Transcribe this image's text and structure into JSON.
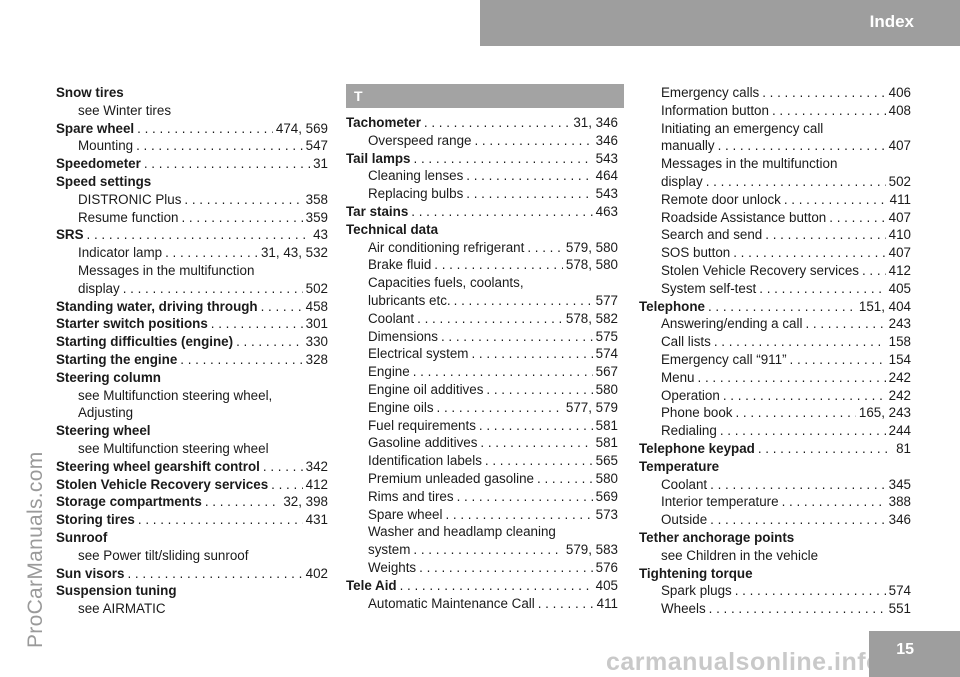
{
  "header": {
    "title": "Index"
  },
  "watermark": "ProCarManuals.com",
  "footer_watermark": "carmanualsonline.info",
  "page_number": "15",
  "col2_letter": "T",
  "columns": [
    [
      {
        "label": "Snow tires",
        "bold": true,
        "sub": false,
        "page": ""
      },
      {
        "label": "see Winter tires",
        "bold": false,
        "sub": true,
        "page": ""
      },
      {
        "label": "Spare wheel",
        "bold": true,
        "sub": false,
        "page": "474, 569"
      },
      {
        "label": "Mounting",
        "bold": false,
        "sub": true,
        "page": "547"
      },
      {
        "label": "Speedometer",
        "bold": true,
        "sub": false,
        "page": "31"
      },
      {
        "label": "Speed settings",
        "bold": true,
        "sub": false,
        "page": ""
      },
      {
        "label": "DISTRONIC Plus",
        "bold": false,
        "sub": true,
        "page": "358"
      },
      {
        "label": "Resume function",
        "bold": false,
        "sub": true,
        "page": "359"
      },
      {
        "label": "SRS",
        "bold": true,
        "sub": false,
        "page": "43"
      },
      {
        "label": "Indicator lamp",
        "bold": false,
        "sub": true,
        "page": "31, 43, 532"
      },
      {
        "label": "Messages in the multifunction",
        "bold": false,
        "sub": true,
        "page": ""
      },
      {
        "label": "display",
        "bold": false,
        "sub": true,
        "page": "502"
      },
      {
        "label": "Standing water, driving through",
        "bold": true,
        "sub": false,
        "page": "458"
      },
      {
        "label": "Starter switch positions",
        "bold": true,
        "sub": false,
        "page": "301"
      },
      {
        "label": "Starting difficulties (engine)",
        "bold": true,
        "sub": false,
        "page": "330"
      },
      {
        "label": "Starting the engine",
        "bold": true,
        "sub": false,
        "page": "328"
      },
      {
        "label": "Steering column",
        "bold": true,
        "sub": false,
        "page": ""
      },
      {
        "label": "see Multifunction steering wheel,",
        "bold": false,
        "sub": true,
        "page": ""
      },
      {
        "label": "Adjusting",
        "bold": false,
        "sub": true,
        "page": ""
      },
      {
        "label": "Steering wheel",
        "bold": true,
        "sub": false,
        "page": ""
      },
      {
        "label": "see Multifunction steering wheel",
        "bold": false,
        "sub": true,
        "page": ""
      },
      {
        "label": "Steering wheel gearshift control",
        "bold": true,
        "sub": false,
        "page": "342"
      },
      {
        "label": "Stolen Vehicle Recovery services",
        "bold": true,
        "sub": false,
        "page": "412"
      },
      {
        "label": "Storage compartments",
        "bold": true,
        "sub": false,
        "page": "32, 398"
      },
      {
        "label": "Storing tires",
        "bold": true,
        "sub": false,
        "page": "431"
      },
      {
        "label": "Sunroof",
        "bold": true,
        "sub": false,
        "page": ""
      },
      {
        "label": "see Power tilt/sliding sunroof",
        "bold": false,
        "sub": true,
        "page": ""
      },
      {
        "label": "Sun visors",
        "bold": true,
        "sub": false,
        "page": "402"
      },
      {
        "label": "Suspension tuning",
        "bold": true,
        "sub": false,
        "page": ""
      },
      {
        "label": "see AIRMATIC",
        "bold": false,
        "sub": true,
        "page": ""
      }
    ],
    [
      {
        "label": "Tachometer",
        "bold": true,
        "sub": false,
        "page": "31, 346"
      },
      {
        "label": "Overspeed range",
        "bold": false,
        "sub": true,
        "page": "346"
      },
      {
        "label": "Tail lamps",
        "bold": true,
        "sub": false,
        "page": "543"
      },
      {
        "label": "Cleaning lenses",
        "bold": false,
        "sub": true,
        "page": "464"
      },
      {
        "label": "Replacing bulbs",
        "bold": false,
        "sub": true,
        "page": "543"
      },
      {
        "label": "Tar stains",
        "bold": true,
        "sub": false,
        "page": "463"
      },
      {
        "label": "Technical data",
        "bold": true,
        "sub": false,
        "page": ""
      },
      {
        "label": "Air conditioning refrigerant",
        "bold": false,
        "sub": true,
        "page": "579, 580"
      },
      {
        "label": "Brake fluid",
        "bold": false,
        "sub": true,
        "page": "578, 580"
      },
      {
        "label": "Capacities fuels, coolants,",
        "bold": false,
        "sub": true,
        "page": ""
      },
      {
        "label": "lubricants etc.",
        "bold": false,
        "sub": true,
        "page": "577"
      },
      {
        "label": "Coolant",
        "bold": false,
        "sub": true,
        "page": "578, 582"
      },
      {
        "label": "Dimensions",
        "bold": false,
        "sub": true,
        "page": "575"
      },
      {
        "label": "Electrical system",
        "bold": false,
        "sub": true,
        "page": "574"
      },
      {
        "label": "Engine",
        "bold": false,
        "sub": true,
        "page": "567"
      },
      {
        "label": "Engine oil additives",
        "bold": false,
        "sub": true,
        "page": "580"
      },
      {
        "label": "Engine oils",
        "bold": false,
        "sub": true,
        "page": "577, 579"
      },
      {
        "label": "Fuel requirements",
        "bold": false,
        "sub": true,
        "page": "581"
      },
      {
        "label": "Gasoline additives",
        "bold": false,
        "sub": true,
        "page": "581"
      },
      {
        "label": "Identification labels",
        "bold": false,
        "sub": true,
        "page": "565"
      },
      {
        "label": "Premium unleaded gasoline",
        "bold": false,
        "sub": true,
        "page": "580"
      },
      {
        "label": "Rims and tires",
        "bold": false,
        "sub": true,
        "page": "569"
      },
      {
        "label": "Spare wheel",
        "bold": false,
        "sub": true,
        "page": "573"
      },
      {
        "label": "Washer and headlamp cleaning",
        "bold": false,
        "sub": true,
        "page": ""
      },
      {
        "label": "system",
        "bold": false,
        "sub": true,
        "page": "579, 583"
      },
      {
        "label": "Weights",
        "bold": false,
        "sub": true,
        "page": "576"
      },
      {
        "label": "Tele Aid",
        "bold": true,
        "sub": false,
        "page": "405"
      },
      {
        "label": "Automatic Maintenance Call",
        "bold": false,
        "sub": true,
        "page": "411"
      }
    ],
    [
      {
        "label": "Emergency calls",
        "bold": false,
        "sub": true,
        "page": "406"
      },
      {
        "label": "Information button",
        "bold": false,
        "sub": true,
        "page": "408"
      },
      {
        "label": "Initiating an emergency call",
        "bold": false,
        "sub": true,
        "page": ""
      },
      {
        "label": "manually",
        "bold": false,
        "sub": true,
        "page": "407"
      },
      {
        "label": "Messages in the multifunction",
        "bold": false,
        "sub": true,
        "page": ""
      },
      {
        "label": "display",
        "bold": false,
        "sub": true,
        "page": "502"
      },
      {
        "label": "Remote door unlock",
        "bold": false,
        "sub": true,
        "page": "411"
      },
      {
        "label": "Roadside Assistance button",
        "bold": false,
        "sub": true,
        "page": "407"
      },
      {
        "label": "Search and send",
        "bold": false,
        "sub": true,
        "page": "410"
      },
      {
        "label": "SOS button",
        "bold": false,
        "sub": true,
        "page": "407"
      },
      {
        "label": "Stolen Vehicle Recovery services",
        "bold": false,
        "sub": true,
        "page": "412"
      },
      {
        "label": "System self-test",
        "bold": false,
        "sub": true,
        "page": "405"
      },
      {
        "label": "Telephone",
        "bold": true,
        "sub": false,
        "page": "151, 404"
      },
      {
        "label": "Answering/ending a call",
        "bold": false,
        "sub": true,
        "page": "243"
      },
      {
        "label": "Call lists",
        "bold": false,
        "sub": true,
        "page": "158"
      },
      {
        "label": "Emergency call “911”",
        "bold": false,
        "sub": true,
        "page": "154"
      },
      {
        "label": "Menu",
        "bold": false,
        "sub": true,
        "page": "242"
      },
      {
        "label": "Operation",
        "bold": false,
        "sub": true,
        "page": "242"
      },
      {
        "label": "Phone book",
        "bold": false,
        "sub": true,
        "page": "165, 243"
      },
      {
        "label": "Redialing",
        "bold": false,
        "sub": true,
        "page": "244"
      },
      {
        "label": "Telephone keypad",
        "bold": true,
        "sub": false,
        "page": "81"
      },
      {
        "label": "Temperature",
        "bold": true,
        "sub": false,
        "page": ""
      },
      {
        "label": "Coolant",
        "bold": false,
        "sub": true,
        "page": "345"
      },
      {
        "label": "Interior temperature",
        "bold": false,
        "sub": true,
        "page": "388"
      },
      {
        "label": "Outside",
        "bold": false,
        "sub": true,
        "page": "346"
      },
      {
        "label": "Tether anchorage points",
        "bold": true,
        "sub": false,
        "page": ""
      },
      {
        "label": "see Children in the vehicle",
        "bold": false,
        "sub": true,
        "page": ""
      },
      {
        "label": "Tightening torque",
        "bold": true,
        "sub": false,
        "page": ""
      },
      {
        "label": "Spark plugs",
        "bold": false,
        "sub": true,
        "page": "574"
      },
      {
        "label": "Wheels",
        "bold": false,
        "sub": true,
        "page": "551"
      }
    ]
  ]
}
